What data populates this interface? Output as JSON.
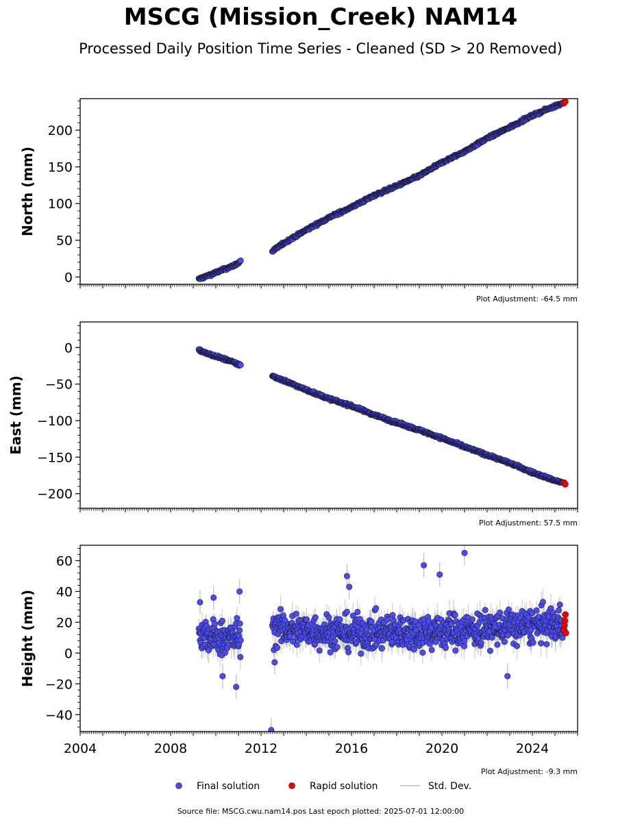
{
  "title": "MSCG (Mission_Creek) NAM14",
  "subtitle": "Processed Daily Position Time Series - Cleaned (SD > 20 Removed)",
  "legend": {
    "final": "Final solution",
    "rapid": "Rapid solution",
    "stddev": "Std. Dev."
  },
  "footer": "Source file: MSCG.cwu.nam14.pos  Last epoch plotted: 2025-07-01 12:00:00",
  "colors": {
    "final": "#4b4bf0",
    "rapid": "#ee0000",
    "stddev": "#bdbdbd",
    "edge": "#1a1a3a"
  },
  "chart_data": [
    {
      "type": "scatter",
      "ylabel": "North (mm)",
      "adjustment": "Plot Adjustment: -64.5 mm",
      "xlim": [
        2004.0,
        2026.0
      ],
      "ylim": [
        -10,
        243
      ],
      "yticks": [
        0,
        50,
        100,
        150,
        200
      ],
      "ytick_labels": [
        "0",
        "50",
        "100",
        "150",
        "200"
      ],
      "xticks": [
        2004,
        2008,
        2012,
        2016,
        2020,
        2024
      ],
      "xtick_labels": [],
      "series": [
        {
          "name": "Final solution",
          "segments": [
            {
              "x": [
                2009.25,
                2009.5,
                2009.75,
                2010.0,
                2010.25,
                2010.5,
                2010.75,
                2011.0,
                2011.1
              ],
              "y": [
                -3,
                0,
                3,
                6,
                9,
                12,
                15,
                19,
                22
              ]
            },
            {
              "x": [
                2012.5,
                2013.0,
                2014.0,
                2015.0,
                2016.0,
                2017.0,
                2018.0,
                2019.0,
                2020.0,
                2021.0,
                2022.0,
                2023.0,
                2024.0,
                2025.0,
                2025.35
              ],
              "y": [
                35,
                46,
                64,
                81,
                95,
                111,
                124,
                138,
                156,
                171,
                189,
                204,
                220,
                233,
                237
              ]
            }
          ],
          "noise": 2.0
        },
        {
          "name": "Rapid solution",
          "x": [
            2025.4,
            2025.45
          ],
          "y": [
            237,
            239
          ]
        }
      ]
    },
    {
      "type": "scatter",
      "ylabel": "East (mm)",
      "adjustment": "Plot Adjustment: 57.5 mm",
      "xlim": [
        2004.0,
        2026.0
      ],
      "ylim": [
        -220,
        35
      ],
      "yticks": [
        -200,
        -150,
        -100,
        -50,
        0
      ],
      "ytick_labels": [
        "−200",
        "−150",
        "−100",
        "−50",
        "0"
      ],
      "xticks": [
        2004,
        2008,
        2012,
        2016,
        2020,
        2024
      ],
      "xtick_labels": [],
      "series": [
        {
          "name": "Final solution",
          "segments": [
            {
              "x": [
                2009.25,
                2009.5,
                2010.0,
                2010.5,
                2011.0,
                2011.1
              ],
              "y": [
                -3,
                -7,
                -12,
                -17,
                -23,
                -24
              ]
            },
            {
              "x": [
                2012.5,
                2013.0,
                2014.0,
                2015.0,
                2016.0,
                2017.0,
                2018.0,
                2019.0,
                2020.0,
                2021.0,
                2022.0,
                2023.0,
                2024.0,
                2025.0,
                2025.35
              ],
              "y": [
                -39,
                -45,
                -58,
                -70,
                -80,
                -92,
                -103,
                -113,
                -124,
                -136,
                -147,
                -158,
                -171,
                -182,
                -185
              ]
            }
          ],
          "noise": 2.0
        },
        {
          "name": "Rapid solution",
          "x": [
            2025.4,
            2025.45
          ],
          "y": [
            -185,
            -187
          ]
        }
      ]
    },
    {
      "type": "scatter",
      "ylabel": "Height (mm)",
      "adjustment": "Plot Adjustment: -9.3 mm",
      "xlim": [
        2004.0,
        2026.0
      ],
      "ylim": [
        -51,
        70
      ],
      "yticks": [
        -40,
        -20,
        0,
        20,
        40,
        60
      ],
      "ytick_labels": [
        "−40",
        "−20",
        "0",
        "20",
        "40",
        "60"
      ],
      "xticks": [
        2004,
        2008,
        2012,
        2016,
        2020,
        2024
      ],
      "xtick_labels": [
        "2004",
        "2008",
        "2012",
        "2016",
        "2020",
        "2024"
      ],
      "series": [
        {
          "name": "Final solution",
          "segments": [
            {
              "x": [
                2009.25,
                2010.0,
                2011.1
              ],
              "y": [
                10,
                10,
                10
              ]
            },
            {
              "x": [
                2012.5,
                2016.0,
                2020.0,
                2025.35
              ],
              "y": [
                16,
                13,
                14,
                19
              ]
            }
          ],
          "noise": 8.0,
          "outliers": {
            "x": [
              2009.3,
              2009.9,
              2010.3,
              2010.9,
              2011.05,
              2012.45,
              2015.8,
              2019.2,
              2019.9,
              2021.0,
              2012.6,
              2015.9,
              2022.9
            ],
            "y": [
              33,
              36,
              -15,
              -22,
              40,
              -50,
              50,
              57,
              51,
              65,
              -6,
              43,
              -15
            ]
          }
        },
        {
          "name": "Rapid solution",
          "x": [
            2025.4,
            2025.42,
            2025.44,
            2025.46,
            2025.48
          ],
          "y": [
            15,
            18,
            21,
            25,
            13
          ]
        }
      ]
    }
  ]
}
